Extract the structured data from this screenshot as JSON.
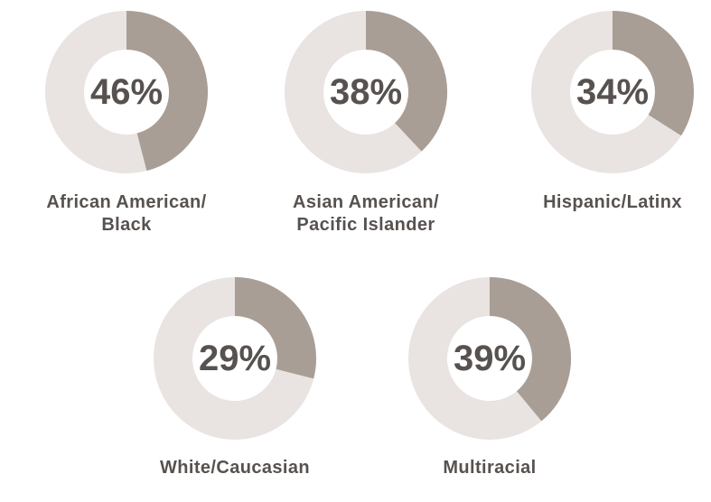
{
  "chart_data": [
    {
      "type": "donut",
      "label": "African American/\nBlack",
      "values": [
        46
      ],
      "value_labels": [
        "46%"
      ],
      "color": "#a89e95",
      "track_color": "#e9e3e2"
    },
    {
      "type": "donut",
      "label": "Asian American/\nPacific Islander",
      "values": [
        38
      ],
      "value_labels": [
        "38%"
      ],
      "color": "#a89e95",
      "track_color": "#e9e3e2"
    },
    {
      "type": "donut",
      "label": "Hispanic/Latinx",
      "values": [
        34
      ],
      "value_labels": [
        "34%"
      ],
      "color": "#a89e95",
      "track_color": "#e9e3e2"
    },
    {
      "type": "donut",
      "label": "White/Caucasian",
      "values": [
        29
      ],
      "value_labels": [
        "29%"
      ],
      "color": "#a89e95",
      "track_color": "#e9e3e2"
    },
    {
      "type": "donut",
      "label": "Multiracial",
      "values": [
        39
      ],
      "value_labels": [
        "39%"
      ],
      "color": "#a89e95",
      "track_color": "#e9e3e2"
    }
  ]
}
